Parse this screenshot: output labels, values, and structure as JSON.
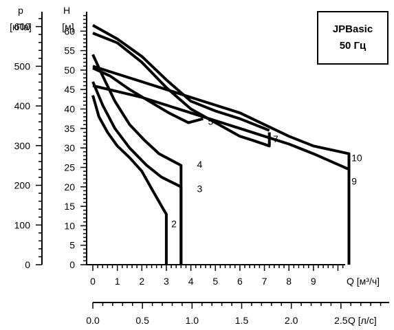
{
  "chart_data": {
    "type": "line",
    "badge": {
      "line1": "JPBasic",
      "line2": "50 Гц"
    },
    "y_head": {
      "label": "H",
      "unit": "[м]",
      "ylim": [
        0,
        65
      ],
      "ticks": [
        0,
        5,
        10,
        15,
        20,
        25,
        30,
        35,
        40,
        45,
        50,
        55,
        60
      ]
    },
    "y_pressure": {
      "label": "p",
      "unit": "[кПа]",
      "ylim": [
        0,
        637.5
      ],
      "ticks": [
        0,
        100,
        200,
        300,
        400,
        500,
        600
      ]
    },
    "x_flow_m3h": {
      "label": "Q [м³/ч]",
      "xlim": [
        0,
        10.8
      ],
      "ticks": [
        0,
        1,
        2,
        3,
        4,
        5,
        6,
        7,
        8,
        9
      ]
    },
    "x_flow_ls": {
      "label": "Q [л/с]",
      "xlim": [
        0,
        3.0
      ],
      "ticks": [
        0.0,
        0.5,
        1.0,
        1.5,
        2.0,
        2.5
      ]
    },
    "grid": false,
    "series": [
      {
        "name": "2",
        "points": [
          [
            0,
            43.5
          ],
          [
            0.25,
            38
          ],
          [
            0.6,
            34
          ],
          [
            1,
            30.5
          ],
          [
            1.5,
            27.5
          ],
          [
            2,
            24
          ],
          [
            2.4,
            19.5
          ],
          [
            2.9,
            14
          ],
          [
            3,
            13
          ],
          [
            3,
            0
          ]
        ]
      },
      {
        "name": "3",
        "points": [
          [
            0,
            47
          ],
          [
            0.4,
            41
          ],
          [
            0.9,
            35
          ],
          [
            1.5,
            30
          ],
          [
            2.2,
            25.5
          ],
          [
            2.8,
            22.5
          ],
          [
            3.6,
            20
          ],
          [
            3.6,
            0
          ]
        ]
      },
      {
        "name": "4",
        "points": [
          [
            0,
            54
          ],
          [
            0.4,
            48.5
          ],
          [
            0.9,
            42
          ],
          [
            1.5,
            36
          ],
          [
            2.1,
            32
          ],
          [
            2.7,
            28.5
          ],
          [
            3.6,
            25.5
          ],
          [
            3.6,
            0
          ]
        ]
      },
      {
        "name": "5",
        "points": [
          [
            0,
            50.5
          ],
          [
            0.7,
            48.5
          ],
          [
            1.5,
            45
          ],
          [
            2.3,
            42
          ],
          [
            3.1,
            39
          ],
          [
            3.9,
            36.5
          ],
          [
            4.5,
            37.5
          ]
        ]
      },
      {
        "name": "7",
        "points": [
          [
            0,
            59.5
          ],
          [
            1,
            57
          ],
          [
            2,
            52
          ],
          [
            3,
            45.5
          ],
          [
            4,
            40
          ],
          [
            5,
            36.5
          ],
          [
            6,
            33
          ],
          [
            6.5,
            32
          ],
          [
            7.2,
            30.5
          ],
          [
            7.2,
            34
          ]
        ]
      },
      {
        "name": "5",
        "points": [
          [
            0,
            61.5
          ],
          [
            1,
            58
          ],
          [
            2,
            53.5
          ],
          [
            3,
            47.5
          ],
          [
            4,
            42
          ],
          [
            5,
            39.5
          ],
          [
            6,
            37.5
          ],
          [
            7.2,
            34.5
          ]
        ]
      },
      {
        "name": "10",
        "points": [
          [
            0,
            51
          ],
          [
            1,
            49
          ],
          [
            2,
            47
          ],
          [
            3,
            45
          ],
          [
            4,
            43
          ],
          [
            5,
            41
          ],
          [
            6,
            39
          ],
          [
            7,
            36
          ],
          [
            8,
            33
          ],
          [
            9,
            30.5
          ],
          [
            10.45,
            28.5
          ],
          [
            10.45,
            0
          ]
        ]
      },
      {
        "name": "9",
        "points": [
          [
            0,
            46
          ],
          [
            1,
            44.5
          ],
          [
            2,
            43
          ],
          [
            3,
            41
          ],
          [
            4,
            39
          ],
          [
            5,
            37
          ],
          [
            6,
            35
          ],
          [
            7,
            33
          ],
          [
            8,
            31
          ],
          [
            9,
            28.5
          ],
          [
            10.45,
            24.5
          ],
          [
            10.45,
            0
          ]
        ]
      }
    ],
    "curve_labels": [
      {
        "text": "2",
        "x": 3.2,
        "y": 10.5
      },
      {
        "text": "3",
        "x": 4.25,
        "y": 19.5
      },
      {
        "text": "4",
        "x": 4.25,
        "y": 25.8
      },
      {
        "text": "5",
        "x": 4.7,
        "y": 36.8
      },
      {
        "text": "7",
        "x": 7.35,
        "y": 32.3
      },
      {
        "text": "10",
        "x": 10.55,
        "y": 27.5
      },
      {
        "text": "9",
        "x": 10.55,
        "y": 21.5
      }
    ]
  }
}
